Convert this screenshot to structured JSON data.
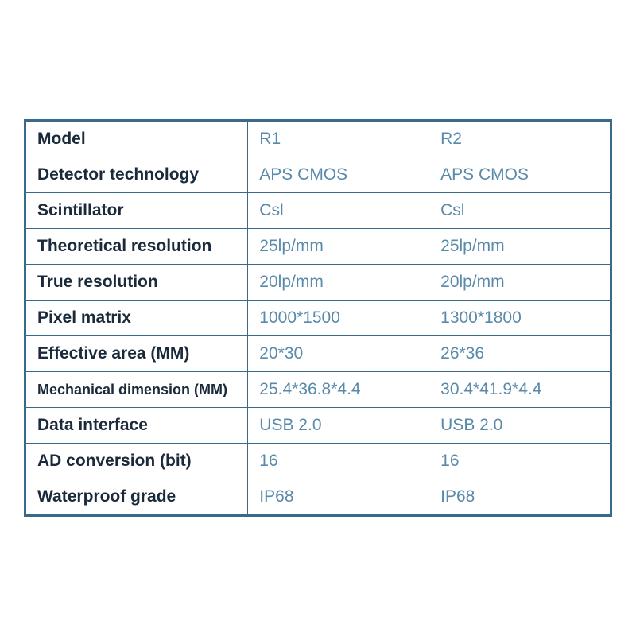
{
  "table": {
    "border_color": "#3a6a8a",
    "label_color": "#1a2a3a",
    "value_color": "#5a8aaa",
    "label_fontsize": 21,
    "value_fontsize": 21,
    "columns_width_pct": [
      38,
      31,
      31
    ],
    "rows": [
      {
        "label": "Model",
        "v1": "R1",
        "v2": "R2",
        "small_label": false
      },
      {
        "label": "Detector technology",
        "v1": "APS CMOS",
        "v2": "APS CMOS",
        "small_label": false
      },
      {
        "label": "Scintillator",
        "v1": "Csl",
        "v2": "Csl",
        "small_label": false
      },
      {
        "label": "Theoretical resolution",
        "v1": "25lp/mm",
        "v2": "25lp/mm",
        "small_label": false
      },
      {
        "label": "True resolution",
        "v1": "20lp/mm",
        "v2": "20lp/mm",
        "small_label": false
      },
      {
        "label": "Pixel matrix",
        "v1": "1000*1500",
        "v2": "1300*1800",
        "small_label": false
      },
      {
        "label": "Effective area (MM)",
        "v1": "20*30",
        "v2": "26*36",
        "small_label": false
      },
      {
        "label": "Mechanical dimension (MM)",
        "v1": "25.4*36.8*4.4",
        "v2": "30.4*41.9*4.4",
        "small_label": true
      },
      {
        "label": "Data interface",
        "v1": "USB 2.0",
        "v2": "USB 2.0",
        "small_label": false
      },
      {
        "label": "AD conversion (bit)",
        "v1": "16",
        "v2": "16",
        "small_label": false
      },
      {
        "label": "Waterproof grade",
        "v1": "IP68",
        "v2": "IP68",
        "small_label": false
      }
    ]
  }
}
